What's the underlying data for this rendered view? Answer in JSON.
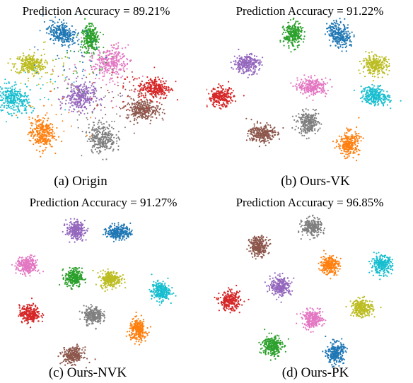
{
  "chart_data": [
    {
      "type": "scatter",
      "title": "Prediction Accuracy = 89.21%",
      "caption": "(a) Origin",
      "clusters": [
        {
          "color": "#1f77b4",
          "center": [
            -0.5,
            0.86
          ],
          "spread": [
            0.105,
            0.07
          ],
          "tilt": -0.5
        },
        {
          "color": "#2ca02c",
          "center": [
            -0.07,
            0.78
          ],
          "spread": [
            0.065,
            0.09
          ],
          "tilt": 0.2
        },
        {
          "color": "#bcbd22",
          "center": [
            -0.98,
            0.42
          ],
          "spread": [
            0.11,
            0.07
          ],
          "tilt": 0.0
        },
        {
          "color": "#e377c2",
          "center": [
            0.22,
            0.45
          ],
          "spread": [
            0.13,
            0.1
          ],
          "tilt": 0.4
        },
        {
          "color": "#17becf",
          "center": [
            -1.22,
            -0.08
          ],
          "spread": [
            0.12,
            0.09
          ],
          "tilt": -0.3
        },
        {
          "color": "#9467bd",
          "center": [
            -0.23,
            -0.04
          ],
          "spread": [
            0.11,
            0.1
          ],
          "tilt": 0.0
        },
        {
          "color": "#d62728",
          "center": [
            0.88,
            0.08
          ],
          "spread": [
            0.12,
            0.075
          ],
          "tilt": 0.0
        },
        {
          "color": "#8c564b",
          "center": [
            0.7,
            -0.22
          ],
          "spread": [
            0.12,
            0.07
          ],
          "tilt": 0.0
        },
        {
          "color": "#ff7f0e",
          "center": [
            -0.8,
            -0.56
          ],
          "spread": [
            0.09,
            0.11
          ],
          "tilt": 0.0
        },
        {
          "color": "#7f7f7f",
          "center": [
            0.1,
            -0.62
          ],
          "spread": [
            0.1,
            0.1
          ],
          "tilt": 0.0
        }
      ],
      "scattered_points": true
    },
    {
      "type": "scatter",
      "title": "Prediction Accuracy = 91.22%",
      "caption": "(b) Ours-VK",
      "clusters": [
        {
          "color": "#2ca02c",
          "center": [
            -0.27,
            0.87
          ],
          "spread": [
            0.07,
            0.09
          ],
          "tilt": 0.0
        },
        {
          "color": "#1f77b4",
          "center": [
            0.44,
            0.88
          ],
          "spread": [
            0.08,
            0.1
          ],
          "tilt": 0.6
        },
        {
          "color": "#9467bd",
          "center": [
            -0.98,
            0.44
          ],
          "spread": [
            0.1,
            0.07
          ],
          "tilt": 0.0
        },
        {
          "color": "#bcbd22",
          "center": [
            1.0,
            0.42
          ],
          "spread": [
            0.1,
            0.07
          ],
          "tilt": 0.0
        },
        {
          "color": "#e377c2",
          "center": [
            0.03,
            0.1
          ],
          "spread": [
            0.11,
            0.06
          ],
          "tilt": 0.0
        },
        {
          "color": "#d62728",
          "center": [
            -1.38,
            -0.06
          ],
          "spread": [
            0.1,
            0.07
          ],
          "tilt": 0.0
        },
        {
          "color": "#17becf",
          "center": [
            1.0,
            -0.04
          ],
          "spread": [
            0.11,
            0.065
          ],
          "tilt": -0.2
        },
        {
          "color": "#7f7f7f",
          "center": [
            -0.03,
            -0.44
          ],
          "spread": [
            0.08,
            0.08
          ],
          "tilt": 0.0
        },
        {
          "color": "#8c564b",
          "center": [
            -0.75,
            -0.6
          ],
          "spread": [
            0.1,
            0.07
          ],
          "tilt": 0.0
        },
        {
          "color": "#ff7f0e",
          "center": [
            0.59,
            -0.75
          ],
          "spread": [
            0.08,
            0.09
          ],
          "tilt": 0.0
        }
      ],
      "scattered_points": false
    },
    {
      "type": "scatter",
      "title": "Prediction Accuracy = 91.27%",
      "caption": "(c) Ours-NVK",
      "clusters": [
        {
          "color": "#9467bd",
          "center": [
            -0.34,
            0.91
          ],
          "spread": [
            0.07,
            0.065
          ],
          "tilt": 0.0
        },
        {
          "color": "#1f77b4",
          "center": [
            0.33,
            0.88
          ],
          "spread": [
            0.09,
            0.055
          ],
          "tilt": 0.0
        },
        {
          "color": "#e377c2",
          "center": [
            -1.08,
            0.38
          ],
          "spread": [
            0.08,
            0.065
          ],
          "tilt": 0.0
        },
        {
          "color": "#2ca02c",
          "center": [
            -0.37,
            0.2
          ],
          "spread": [
            0.065,
            0.07
          ],
          "tilt": 0.0
        },
        {
          "color": "#bcbd22",
          "center": [
            0.2,
            0.18
          ],
          "spread": [
            0.08,
            0.06
          ],
          "tilt": 0.0
        },
        {
          "color": "#17becf",
          "center": [
            0.97,
            0.0
          ],
          "spread": [
            0.07,
            0.07
          ],
          "tilt": 0.0
        },
        {
          "color": "#d62728",
          "center": [
            -1.04,
            -0.34
          ],
          "spread": [
            0.08,
            0.065
          ],
          "tilt": 0.0
        },
        {
          "color": "#7f7f7f",
          "center": [
            -0.07,
            -0.36
          ],
          "spread": [
            0.07,
            0.065
          ],
          "tilt": 0.0
        },
        {
          "color": "#ff7f0e",
          "center": [
            0.62,
            -0.58
          ],
          "spread": [
            0.065,
            0.08
          ],
          "tilt": 0.0
        },
        {
          "color": "#8c564b",
          "center": [
            -0.38,
            -0.96
          ],
          "spread": [
            0.08,
            0.06
          ],
          "tilt": 0.0
        }
      ],
      "scattered_points": false
    },
    {
      "type": "scatter",
      "title": "Prediction Accuracy = 96.85%",
      "caption": "(d) Ours-PK",
      "clusters": [
        {
          "color": "#7f7f7f",
          "center": [
            -0.03,
            0.92
          ],
          "spread": [
            0.075,
            0.065
          ],
          "tilt": 0.0
        },
        {
          "color": "#8c564b",
          "center": [
            -0.85,
            0.64
          ],
          "spread": [
            0.07,
            0.07
          ],
          "tilt": 0.0
        },
        {
          "color": "#ff7f0e",
          "center": [
            0.24,
            0.36
          ],
          "spread": [
            0.07,
            0.07
          ],
          "tilt": 0.0
        },
        {
          "color": "#17becf",
          "center": [
            1.04,
            0.36
          ],
          "spread": [
            0.08,
            0.065
          ],
          "tilt": 0.0
        },
        {
          "color": "#9467bd",
          "center": [
            -0.51,
            0.04
          ],
          "spread": [
            0.08,
            0.07
          ],
          "tilt": 0.0
        },
        {
          "color": "#d62728",
          "center": [
            -1.29,
            -0.18
          ],
          "spread": [
            0.08,
            0.07
          ],
          "tilt": 0.0
        },
        {
          "color": "#bcbd22",
          "center": [
            0.74,
            -0.28
          ],
          "spread": [
            0.08,
            0.065
          ],
          "tilt": 0.0
        },
        {
          "color": "#e377c2",
          "center": [
            -0.02,
            -0.45
          ],
          "spread": [
            0.08,
            0.065
          ],
          "tilt": 0.0
        },
        {
          "color": "#2ca02c",
          "center": [
            -0.64,
            -0.84
          ],
          "spread": [
            0.075,
            0.08
          ],
          "tilt": 0.0
        },
        {
          "color": "#1f77b4",
          "center": [
            0.33,
            -0.96
          ],
          "spread": [
            0.065,
            0.08
          ],
          "tilt": 0.0
        }
      ],
      "scattered_points": false
    }
  ]
}
